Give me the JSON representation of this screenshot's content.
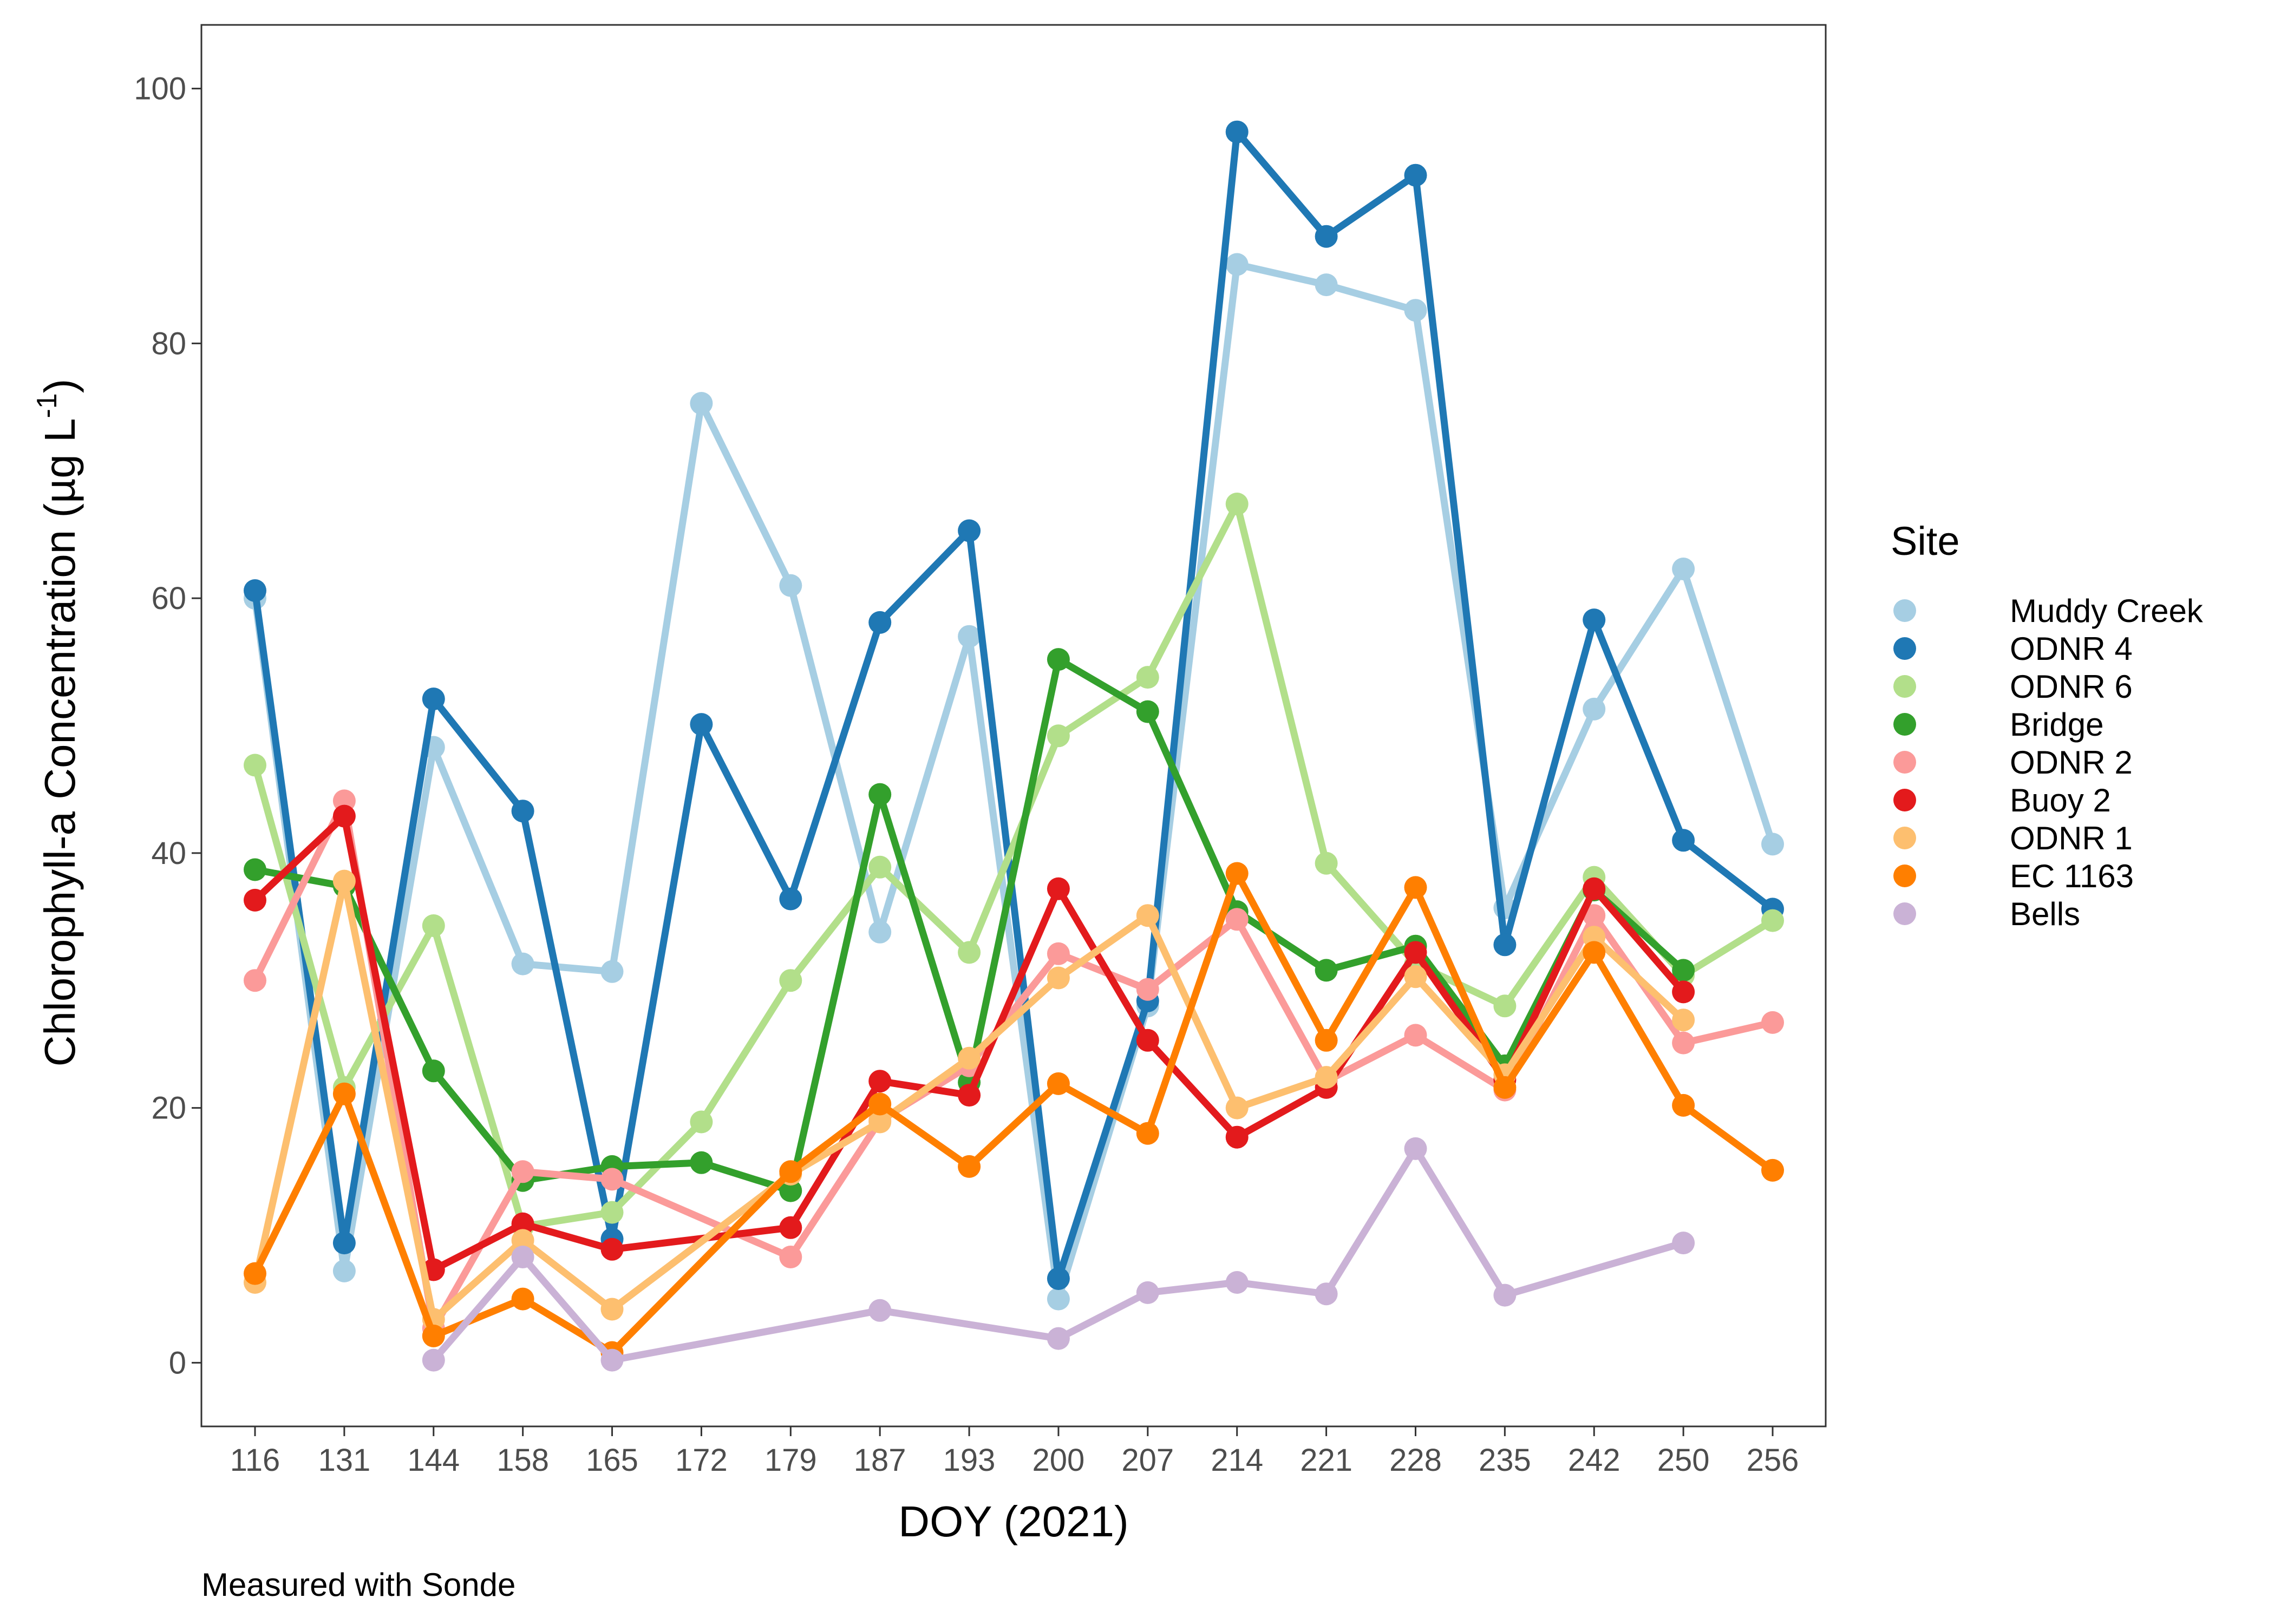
{
  "chart_data": {
    "type": "line",
    "title": "",
    "xlabel": "DOY (2021)",
    "ylabel": "Chlorophyll-a Concentration (µg L",
    "ylabel_superscript": "-1",
    "ylabel_close": ")",
    "caption": "Measured with Sonde",
    "categories": [
      "116",
      "131",
      "144",
      "158",
      "165",
      "172",
      "179",
      "187",
      "193",
      "200",
      "207",
      "214",
      "221",
      "228",
      "235",
      "242",
      "250",
      "256"
    ],
    "ylim": [
      -5,
      105
    ],
    "yticks": [
      0,
      20,
      40,
      60,
      80,
      100
    ],
    "grid": false,
    "legend": {
      "title": "Site",
      "position": "right"
    },
    "series": [
      {
        "name": "Muddy Creek",
        "color": "#a6cee3",
        "values": [
          60.0,
          7.2,
          48.3,
          31.3,
          30.7,
          75.3,
          61.0,
          33.8,
          57.0,
          5.0,
          28.0,
          86.2,
          84.6,
          82.6,
          35.7,
          51.3,
          62.3,
          40.7
        ]
      },
      {
        "name": "ODNR 4",
        "color": "#1f78b4",
        "values": [
          60.6,
          9.4,
          52.1,
          43.3,
          9.7,
          50.1,
          36.4,
          58.1,
          65.3,
          6.6,
          28.4,
          96.6,
          88.4,
          93.2,
          32.8,
          58.3,
          41.0,
          35.6
        ]
      },
      {
        "name": "ODNR 6",
        "color": "#b2df8a",
        "values": [
          46.9,
          21.6,
          34.3,
          10.7,
          11.8,
          18.9,
          30.0,
          38.9,
          32.2,
          49.2,
          53.8,
          67.4,
          39.2,
          31.3,
          28.0,
          38.1,
          30.4,
          34.7
        ]
      },
      {
        "name": "Bridge",
        "color": "#33a02c",
        "values": [
          38.7,
          37.4,
          22.9,
          14.3,
          15.4,
          15.7,
          13.5,
          44.6,
          22.0,
          55.2,
          51.1,
          35.4,
          30.8,
          32.7,
          23.3,
          37.1,
          30.8,
          null
        ]
      },
      {
        "name": "ODNR 2",
        "color": "#fb9a99",
        "values": [
          30.0,
          44.1,
          2.7,
          15.0,
          14.4,
          null,
          8.3,
          19.0,
          23.3,
          32.1,
          29.3,
          34.8,
          22.1,
          25.7,
          21.4,
          35.1,
          25.1,
          26.7
        ]
      },
      {
        "name": "Buoy 2",
        "color": "#e31a1c",
        "values": [
          36.3,
          42.9,
          7.3,
          10.9,
          8.9,
          null,
          10.6,
          22.1,
          21.0,
          37.2,
          25.3,
          17.7,
          21.6,
          32.2,
          22.2,
          37.2,
          29.1,
          null
        ]
      },
      {
        "name": "ODNR 1",
        "color": "#fdbf6f",
        "values": [
          6.3,
          37.8,
          3.4,
          9.6,
          4.2,
          null,
          14.8,
          18.9,
          23.9,
          30.2,
          35.1,
          20.0,
          22.4,
          30.3,
          22.6,
          33.4,
          26.9,
          null
        ]
      },
      {
        "name": "EC 1163",
        "color": "#ff7f00",
        "values": [
          7.0,
          21.1,
          2.1,
          5.0,
          0.8,
          null,
          15.0,
          20.3,
          15.4,
          21.9,
          18.0,
          38.4,
          25.3,
          37.3,
          21.6,
          32.2,
          20.2,
          15.1
        ]
      },
      {
        "name": "Bells",
        "color": "#cab2d6",
        "values": [
          null,
          null,
          0.2,
          8.3,
          0.2,
          null,
          null,
          4.1,
          null,
          1.9,
          5.5,
          6.3,
          5.4,
          16.8,
          5.3,
          null,
          9.4,
          null
        ]
      }
    ]
  }
}
